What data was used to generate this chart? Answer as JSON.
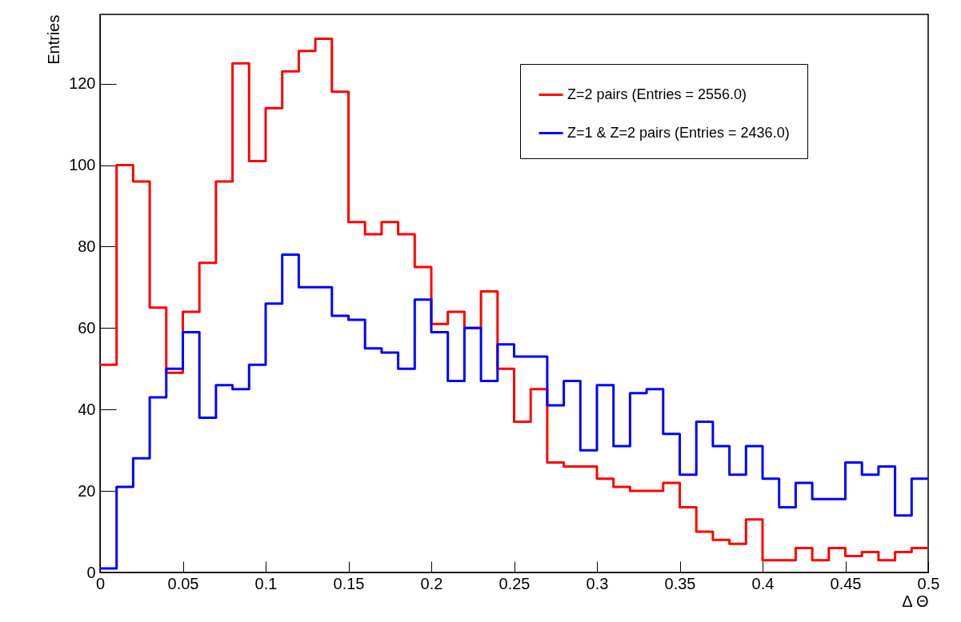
{
  "chart_data": {
    "type": "histogram",
    "xlabel": "Δ Θ",
    "ylabel": "Entries",
    "bins": [
      0,
      0.01,
      0.02,
      0.03,
      0.04,
      0.05,
      0.06,
      0.07,
      0.08,
      0.09,
      0.1,
      0.11,
      0.12,
      0.13,
      0.14,
      0.15,
      0.16,
      0.17,
      0.18,
      0.19,
      0.2,
      0.21,
      0.22,
      0.23,
      0.24,
      0.25,
      0.26,
      0.27,
      0.28,
      0.29,
      0.3,
      0.31,
      0.32,
      0.33,
      0.34,
      0.35,
      0.36,
      0.37,
      0.38,
      0.39,
      0.4,
      0.41,
      0.42,
      0.43,
      0.44,
      0.45,
      0.46,
      0.47,
      0.48,
      0.49,
      0.5
    ],
    "series": [
      {
        "name": "Z=2 pairs (Entries = 2556.0)",
        "color": "#ff0000",
        "values": [
          51,
          100,
          96,
          65,
          49,
          64,
          76,
          96,
          125,
          101,
          114,
          123,
          128,
          131,
          118,
          86,
          83,
          86,
          83,
          75,
          61,
          64,
          60,
          69,
          50,
          37,
          45,
          27,
          26,
          26,
          23,
          21,
          20,
          20,
          22,
          16,
          10,
          8,
          7,
          13,
          3,
          3,
          6,
          3,
          6,
          4,
          5,
          3,
          5,
          6
        ]
      },
      {
        "name": "Z=1 & Z=2 pairs (Entries = 2436.0)",
        "color": "#0000ff",
        "values": [
          1,
          21,
          28,
          43,
          50,
          59,
          38,
          46,
          45,
          51,
          66,
          78,
          70,
          70,
          63,
          62,
          55,
          54,
          50,
          67,
          59,
          47,
          60,
          47,
          56,
          53,
          53,
          41,
          47,
          30,
          46,
          31,
          44,
          45,
          34,
          24,
          37,
          31,
          24,
          31,
          23,
          16,
          22,
          18,
          18,
          27,
          24,
          26,
          14,
          23
        ]
      }
    ],
    "xlim": [
      0,
      0.5
    ],
    "ylim": [
      0,
      137
    ],
    "xticks": [
      0,
      0.05,
      0.1,
      0.15,
      0.2,
      0.25,
      0.3,
      0.35,
      0.4,
      0.45,
      0.5
    ],
    "yticks": [
      0,
      20,
      40,
      60,
      80,
      100,
      120
    ],
    "grid": false,
    "legend": "top right"
  }
}
